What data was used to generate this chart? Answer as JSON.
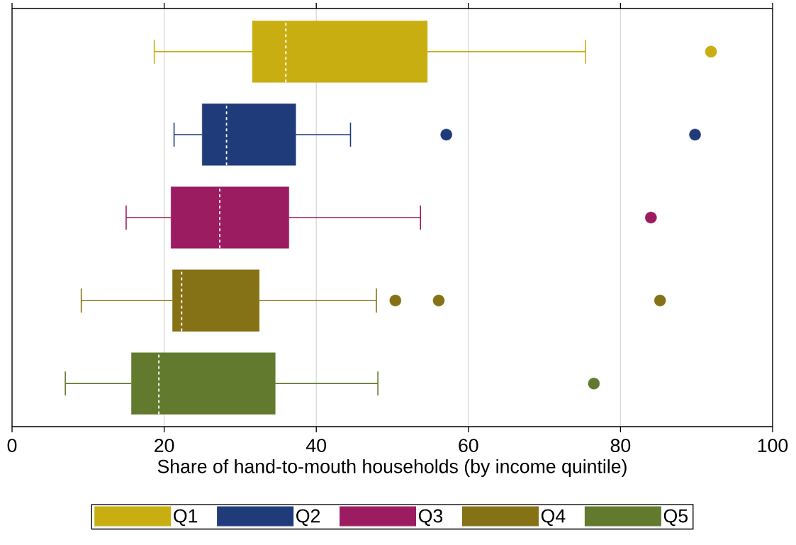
{
  "chart_data": {
    "type": "box",
    "orientation": "horizontal",
    "xlabel": "Share of hand-to-mouth households (by income quintile)",
    "categories": [
      null,
      null,
      null,
      null,
      null
    ],
    "xlim": [
      0,
      100
    ],
    "xticks": [
      0,
      20,
      40,
      60,
      80,
      100
    ],
    "grid": "x",
    "legend": "bottom",
    "series": [
      {
        "name": "Q1",
        "color": "#c9ae12",
        "boxes": [
          {
            "low": 18.7,
            "q1": 31.6,
            "median": 36.0,
            "q3": 54.6,
            "high": 75.4,
            "outliers": [
              91.9
            ]
          },
          null,
          null,
          null,
          null
        ]
      },
      {
        "name": "Q2",
        "color": "#1f3b7a",
        "boxes": [
          null,
          {
            "low": 21.3,
            "q1": 25.0,
            "median": 28.2,
            "q3": 37.3,
            "high": 44.5,
            "outliers": [
              57.1,
              89.8
            ]
          },
          null,
          null,
          null
        ]
      },
      {
        "name": "Q3",
        "color": "#9c1c62",
        "boxes": [
          null,
          null,
          {
            "low": 15.0,
            "q1": 20.9,
            "median": 27.3,
            "q3": 36.4,
            "high": 53.7,
            "outliers": [
              84.0
            ]
          },
          null,
          null
        ]
      },
      {
        "name": "Q4",
        "color": "#857216",
        "boxes": [
          null,
          null,
          null,
          {
            "low": 9.1,
            "q1": 21.1,
            "median": 22.3,
            "q3": 32.5,
            "high": 47.9,
            "outliers": [
              50.4,
              56.1,
              85.2
            ]
          },
          null
        ]
      },
      {
        "name": "Q5",
        "color": "#617a2e",
        "boxes": [
          null,
          null,
          null,
          null,
          {
            "low": 7.0,
            "q1": 15.7,
            "median": 19.3,
            "q3": 34.6,
            "high": 48.1,
            "outliers": [
              76.5
            ]
          }
        ]
      }
    ]
  }
}
